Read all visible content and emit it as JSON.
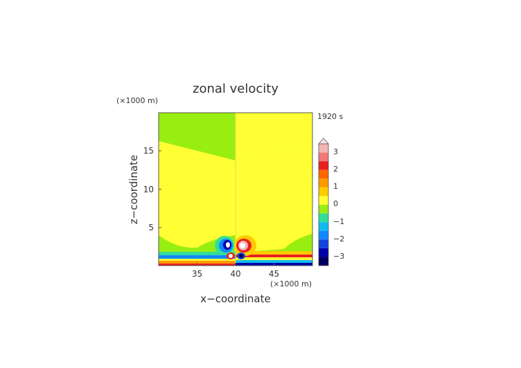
{
  "chart_data": {
    "type": "heatmap",
    "title": "zonal velocity",
    "time_label": "1920 s",
    "xlabel": "x−coordinate",
    "ylabel": "z−coordinate",
    "x_unit": "(×1000 m)",
    "z_unit": "(×1000 m)",
    "xlim": [
      30,
      50
    ],
    "ylim": [
      0,
      20
    ],
    "x_ticks": [
      "35",
      "40",
      "45"
    ],
    "y_ticks": [
      "5",
      "10",
      "15"
    ],
    "colorbar": {
      "labels": [
        "3",
        "2",
        "1",
        "0",
        "−1",
        "−2",
        "−3"
      ],
      "levels": [
        {
          "min": 3.0,
          "max": 3.5,
          "color": "#f4b4b4"
        },
        {
          "min": 2.5,
          "max": 3.0,
          "color": "#f07878"
        },
        {
          "min": 2.0,
          "max": 2.5,
          "color": "#e82020"
        },
        {
          "min": 1.5,
          "max": 2.0,
          "color": "#ff6600"
        },
        {
          "min": 1.0,
          "max": 1.5,
          "color": "#ff9900"
        },
        {
          "min": 0.5,
          "max": 1.0,
          "color": "#ffcc00"
        },
        {
          "min": 0.0,
          "max": 0.5,
          "color": "#ffff33"
        },
        {
          "min": -0.5,
          "max": 0.0,
          "color": "#99ee11"
        },
        {
          "min": -1.0,
          "max": -0.5,
          "color": "#33dd99"
        },
        {
          "min": -1.5,
          "max": -1.0,
          "color": "#11bbee"
        },
        {
          "min": -2.0,
          "max": -1.5,
          "color": "#1188ff"
        },
        {
          "min": -2.5,
          "max": -2.0,
          "color": "#1144dd"
        },
        {
          "min": -3.0,
          "max": -2.5,
          "color": "#0000aa"
        },
        {
          "min": -3.5,
          "max": -3.0,
          "color": "#000060"
        }
      ],
      "extend_top": true
    },
    "colors": {
      "positive_small": "#ffff33",
      "negative_small": "#99ee11"
    }
  }
}
